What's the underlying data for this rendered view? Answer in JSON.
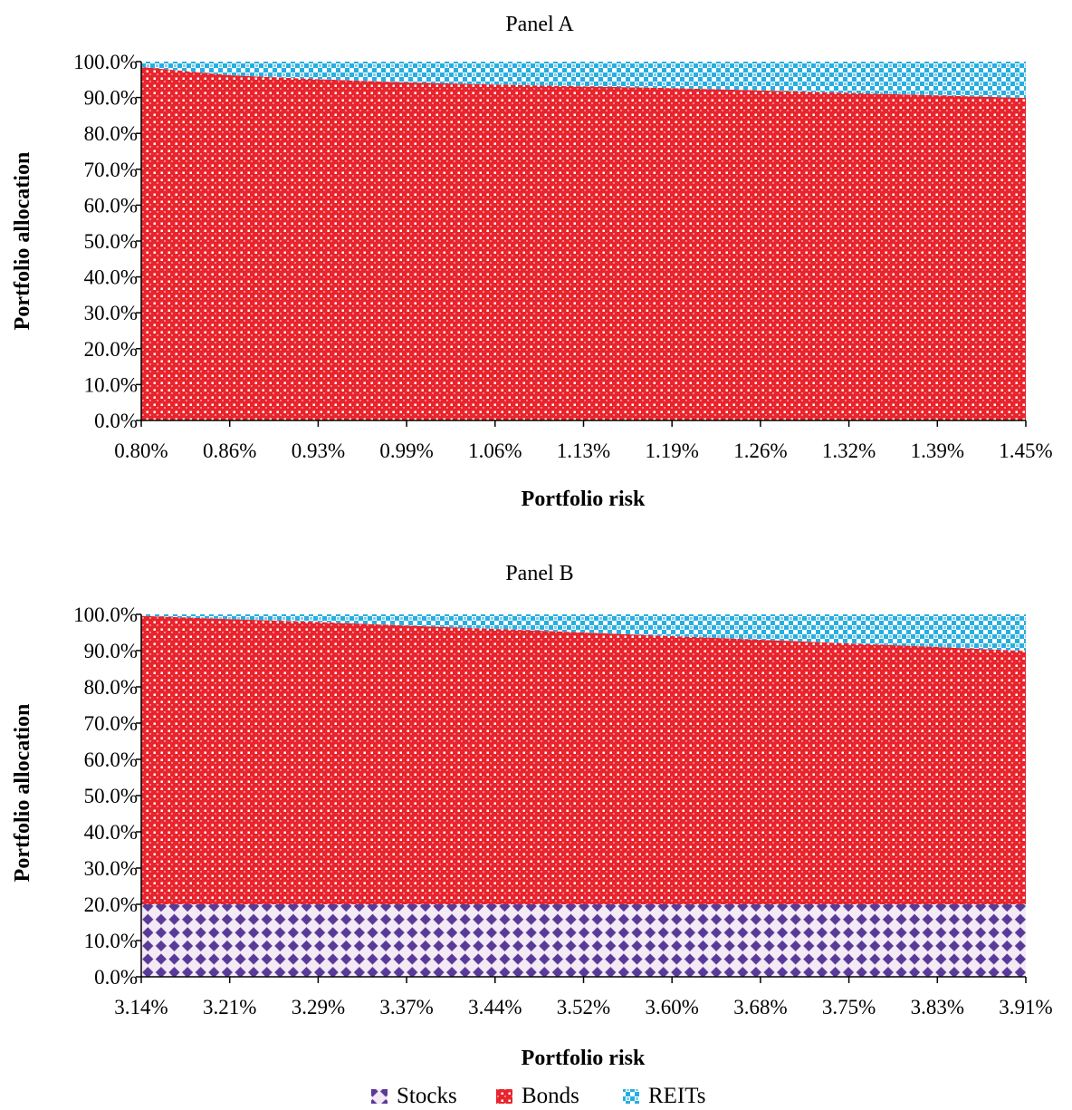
{
  "chart_data": [
    {
      "type": "area",
      "stacked": true,
      "title": "Panel A",
      "xlabel": "Portfolio risk",
      "ylabel": "Portfolio allocation",
      "x_ticks": [
        "0.80%",
        "0.86%",
        "0.93%",
        "0.99%",
        "1.06%",
        "1.13%",
        "1.19%",
        "1.26%",
        "1.32%",
        "1.39%",
        "1.45%"
      ],
      "y_ticks": [
        "0.0%",
        "10.0%",
        "20.0%",
        "30.0%",
        "40.0%",
        "50.0%",
        "60.0%",
        "70.0%",
        "80.0%",
        "90.0%",
        "100.0%"
      ],
      "ylim": [
        0,
        100
      ],
      "series": [
        {
          "name": "Stocks",
          "values": [
            0,
            0,
            0,
            0,
            0,
            0,
            0,
            0,
            0,
            0,
            0
          ]
        },
        {
          "name": "Bonds",
          "values": [
            98.5,
            96.2,
            95.1,
            94.2,
            93.6,
            93.1,
            92.6,
            92.0,
            91.3,
            90.6,
            89.9
          ]
        },
        {
          "name": "REITs",
          "values": [
            1.5,
            3.8,
            4.9,
            5.8,
            6.4,
            6.9,
            7.4,
            8.0,
            8.7,
            9.4,
            10.1
          ]
        }
      ]
    },
    {
      "type": "area",
      "stacked": true,
      "title": "Panel B",
      "xlabel": "Portfolio risk",
      "ylabel": "Portfolio allocation",
      "x_ticks": [
        "3.14%",
        "3.21%",
        "3.29%",
        "3.37%",
        "3.44%",
        "3.52%",
        "3.60%",
        "3.68%",
        "3.75%",
        "3.83%",
        "3.91%"
      ],
      "y_ticks": [
        "0.0%",
        "10.0%",
        "20.0%",
        "30.0%",
        "40.0%",
        "50.0%",
        "60.0%",
        "70.0%",
        "80.0%",
        "90.0%",
        "100.0%"
      ],
      "ylim": [
        0,
        100
      ],
      "series": [
        {
          "name": "Stocks",
          "values": [
            20,
            20,
            20,
            20,
            20,
            20,
            20,
            20,
            20,
            20,
            20
          ]
        },
        {
          "name": "Bonds",
          "values": [
            79.6,
            78.7,
            77.9,
            76.9,
            76.0,
            75.0,
            74.0,
            73.0,
            72.0,
            71.0,
            69.9
          ]
        },
        {
          "name": "REITs",
          "values": [
            0.4,
            1.3,
            2.1,
            3.1,
            4.0,
            5.0,
            6.0,
            7.0,
            8.0,
            9.0,
            10.1
          ]
        }
      ]
    }
  ],
  "legend": {
    "position": "bottom",
    "items": [
      "Stocks",
      "Bonds",
      "REITs"
    ]
  },
  "colors": {
    "stocks_fill": "#5a3a98",
    "stocks_bg": "#f3eaf6",
    "bonds_fill": "#e8242c",
    "bonds_bg": "#ffffff",
    "reits_fill": "#27aee0",
    "reits_bg": "#ffffff",
    "axis": "#000000"
  }
}
